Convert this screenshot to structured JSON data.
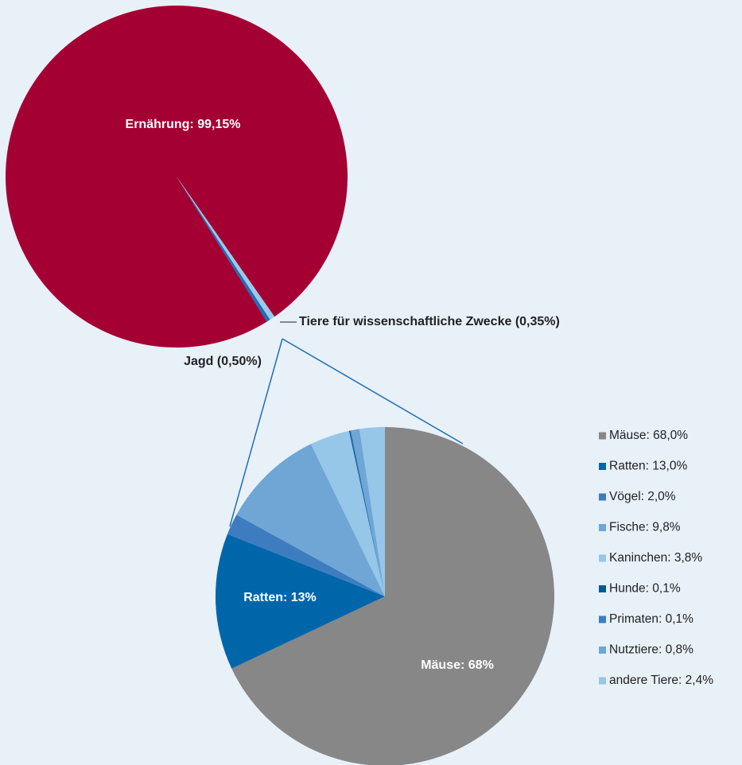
{
  "chart_data": [
    {
      "type": "pie",
      "values": [
        99.15,
        0.5,
        0.35
      ],
      "value_labels": [
        "Ernährung: 99,15%",
        "Jagd (0,50%)",
        "Tiere für wissenschaftliche Zwecke (0,35%)"
      ],
      "colors": [
        "#a50034",
        "#9cc8ea",
        "#1f6fb5"
      ]
    },
    {
      "type": "pie",
      "categories": [
        "Mäuse: 68,0%",
        "Ratten: 13,0%",
        "Vögel: 2,0%",
        "Fische: 9,8%",
        "Kaninchen: 3,8%",
        "Hunde: 0,1%",
        "Primaten: 0,1%",
        "Nutztiere: 0,8%",
        "andere Tiere: 2,4%"
      ],
      "values": [
        68.0,
        13.0,
        2.0,
        9.8,
        3.8,
        0.1,
        0.1,
        0.8,
        2.4
      ],
      "value_labels": [
        "Mäuse: 68%",
        "Ratten: 13%",
        null,
        null,
        null,
        null,
        null,
        null,
        null
      ],
      "colors": [
        "#878787",
        "#0066aa",
        "#3d7dbf",
        "#6fa6d6",
        "#96c6e8",
        "#005a96",
        "#3d7dbf",
        "#6fa6d6",
        "#96c6e8"
      ],
      "legend": "right"
    }
  ]
}
